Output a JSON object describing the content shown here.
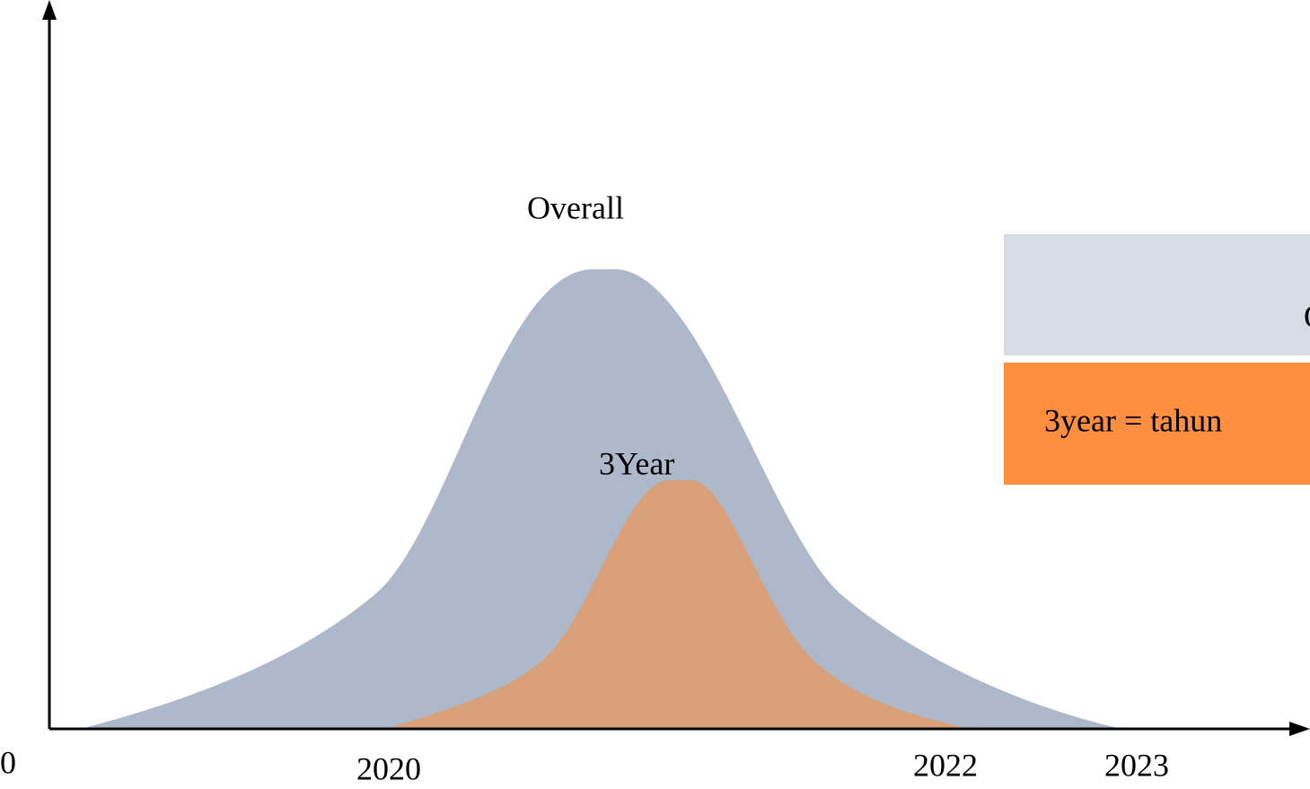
{
  "axis_labels": [
    "0",
    "2020",
    "2022",
    "2023"
  ],
  "shapes": [
    {
      "label": "Overall"
    },
    {
      "label": "3Year"
    }
  ],
  "legend": [
    {
      "text": "O"
    },
    {
      "text": "3year = tahun"
    }
  ]
}
